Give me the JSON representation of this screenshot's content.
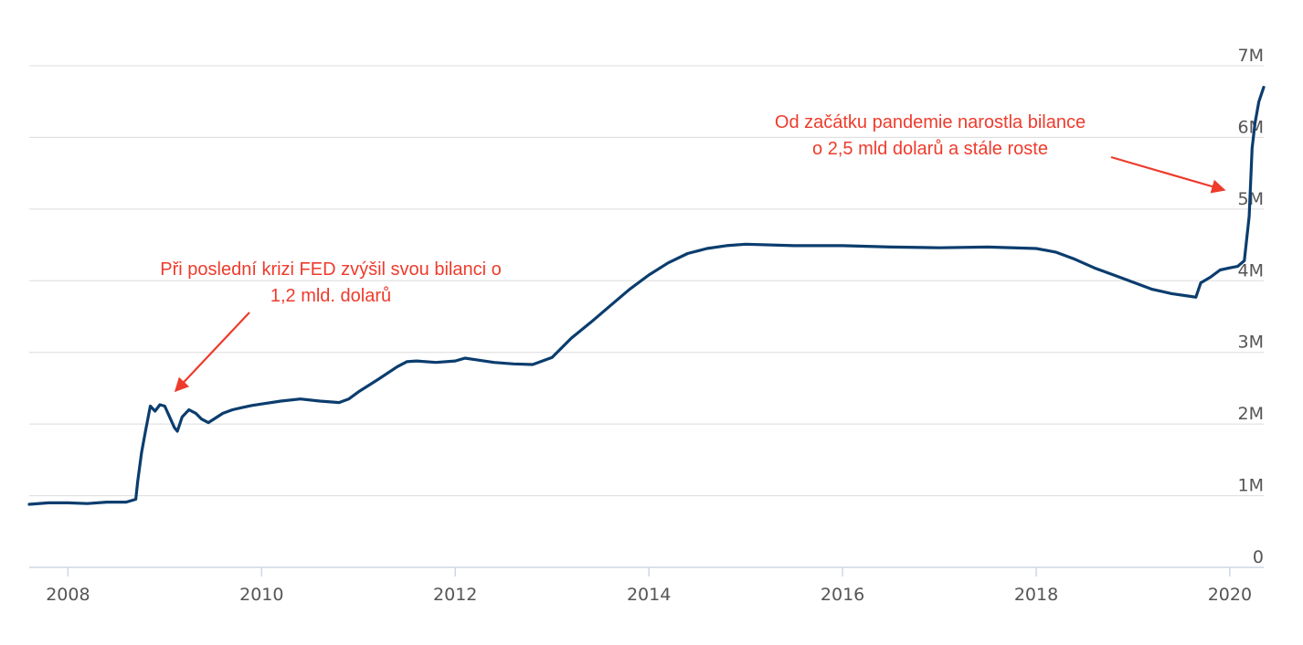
{
  "chart_data": {
    "type": "line",
    "title": "",
    "xlabel": "",
    "ylabel": "",
    "xlim": [
      2007.6,
      2020.35
    ],
    "ylim": [
      0,
      7
    ],
    "grid": true,
    "x_ticks": [
      {
        "value": 2008,
        "label": "2008"
      },
      {
        "value": 2010,
        "label": "2010"
      },
      {
        "value": 2012,
        "label": "2012"
      },
      {
        "value": 2014,
        "label": "2014"
      },
      {
        "value": 2016,
        "label": "2016"
      },
      {
        "value": 2018,
        "label": "2018"
      },
      {
        "value": 2020,
        "label": "2020"
      }
    ],
    "y_ticks": [
      {
        "value": 0,
        "label": "0"
      },
      {
        "value": 1,
        "label": "1M"
      },
      {
        "value": 2,
        "label": "2M"
      },
      {
        "value": 3,
        "label": "3M"
      },
      {
        "value": 4,
        "label": "4M"
      },
      {
        "value": 5,
        "label": "5M"
      },
      {
        "value": 6,
        "label": "6M"
      },
      {
        "value": 7,
        "label": "7M"
      }
    ],
    "series": [
      {
        "color": "#0b3d6e",
        "x": [
          2007.6,
          2007.8,
          2008.0,
          2008.2,
          2008.4,
          2008.6,
          2008.7,
          2008.72,
          2008.76,
          2008.8,
          2008.85,
          2008.9,
          2008.95,
          2009.0,
          2009.05,
          2009.1,
          2009.13,
          2009.18,
          2009.25,
          2009.32,
          2009.38,
          2009.45,
          2009.52,
          2009.6,
          2009.7,
          2009.8,
          2009.9,
          2010.0,
          2010.2,
          2010.4,
          2010.6,
          2010.8,
          2010.9,
          2011.0,
          2011.2,
          2011.4,
          2011.5,
          2011.6,
          2011.8,
          2012.0,
          2012.1,
          2012.2,
          2012.4,
          2012.6,
          2012.8,
          2013.0,
          2013.2,
          2013.4,
          2013.6,
          2013.8,
          2014.0,
          2014.2,
          2014.4,
          2014.6,
          2014.8,
          2015.0,
          2015.5,
          2016.0,
          2016.5,
          2017.0,
          2017.5,
          2018.0,
          2018.2,
          2018.4,
          2018.6,
          2018.8,
          2019.0,
          2019.2,
          2019.4,
          2019.6,
          2019.65,
          2019.7,
          2019.8,
          2019.9,
          2020.0,
          2020.08,
          2020.15,
          2020.2,
          2020.23,
          2020.26,
          2020.3,
          2020.35
        ],
        "values": [
          0.88,
          0.9,
          0.9,
          0.89,
          0.91,
          0.91,
          0.95,
          1.2,
          1.6,
          1.9,
          2.25,
          2.18,
          2.27,
          2.25,
          2.1,
          1.95,
          1.9,
          2.1,
          2.2,
          2.15,
          2.07,
          2.02,
          2.08,
          2.15,
          2.2,
          2.23,
          2.26,
          2.28,
          2.32,
          2.35,
          2.32,
          2.3,
          2.35,
          2.45,
          2.62,
          2.8,
          2.87,
          2.88,
          2.86,
          2.88,
          2.92,
          2.9,
          2.86,
          2.84,
          2.83,
          2.93,
          3.2,
          3.42,
          3.65,
          3.88,
          4.08,
          4.25,
          4.38,
          4.45,
          4.49,
          4.51,
          4.49,
          4.49,
          4.47,
          4.46,
          4.47,
          4.45,
          4.4,
          4.3,
          4.18,
          4.08,
          3.98,
          3.88,
          3.82,
          3.78,
          3.77,
          3.97,
          4.05,
          4.15,
          4.18,
          4.2,
          4.28,
          4.9,
          5.85,
          6.2,
          6.5,
          6.7
        ]
      }
    ],
    "annotations": [
      {
        "lines": [
          "Při poslední krizi FED zvýšil svou bilanci o",
          "1,2 mld. dolarů"
        ]
      },
      {
        "lines": [
          "Od začátku pandemie narostla bilance",
          "o  2,5 mld dolarů a stále roste"
        ]
      }
    ]
  }
}
